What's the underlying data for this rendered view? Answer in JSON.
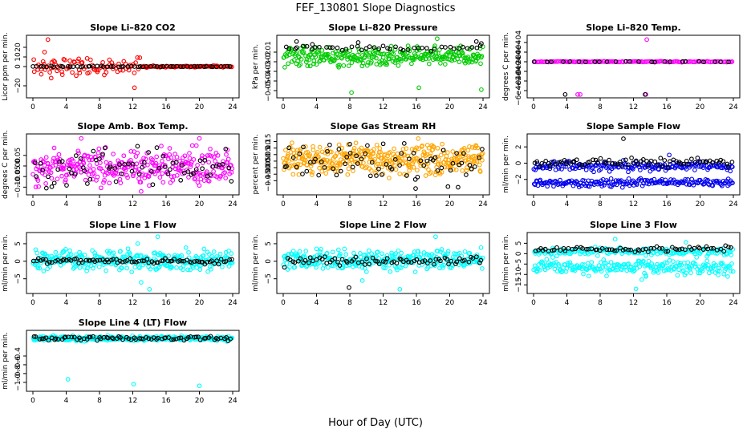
{
  "figure": {
    "title": "FEF_130801  Slope Diagnostics",
    "xlabel": "Hour of Day (UTC)"
  },
  "chart_data": [
    {
      "type": "scatter",
      "title": "Slope Li–820 CO2",
      "ylabel": "Licor ppm per min.",
      "xlim": [
        0,
        24
      ],
      "ylim": [
        -30,
        30
      ],
      "xticks": [
        "0",
        "4",
        "8",
        "12",
        "16",
        "20",
        "24"
      ],
      "yticks": [
        {
          "v": -20,
          "t": "−20"
        },
        {
          "v": 0,
          "t": "0"
        },
        {
          "v": 10,
          "t": "10"
        },
        {
          "v": 20,
          "t": "20"
        }
      ],
      "series": [
        {
          "name": "primary",
          "color": "#ff0000",
          "gen": {
            "kind": "band",
            "n": 150,
            "x0": 0,
            "x1": 24,
            "center": 0,
            "spread": 4,
            "segments": [
              {
                "x0": 0,
                "x1": 13,
                "spread": 7
              },
              {
                "x0": 13,
                "x1": 24,
                "spread": 0.7
              }
            ]
          },
          "points": [
            [
              1.8,
              28
            ],
            [
              1.4,
              15
            ],
            [
              2.2,
              -12
            ],
            [
              12.2,
              -22
            ],
            [
              2.5,
              6
            ],
            [
              1.0,
              -8
            ],
            [
              5.5,
              8
            ],
            [
              9.2,
              7
            ],
            [
              8.8,
              -6
            ]
          ]
        },
        {
          "name": "secondary",
          "color": "#000000",
          "gen": {
            "kind": "band",
            "n": 60,
            "x0": 0,
            "x1": 24,
            "center": 0,
            "spread": 0.4
          }
        }
      ]
    },
    {
      "type": "scatter",
      "title": "Slope Li–820 Pressure",
      "ylabel": "kPa per min.",
      "xlim": [
        0,
        24
      ],
      "ylim": [
        -0.055,
        0.005
      ],
      "xticks": [
        "0",
        "4",
        "8",
        "12",
        "16",
        "20",
        "24"
      ],
      "yticks": [
        {
          "v": -0.05,
          "t": "−0.05"
        },
        {
          "v": -0.04,
          "t": "−0.04"
        },
        {
          "v": -0.03,
          "t": "−0.03"
        },
        {
          "v": -0.02,
          "t": "−0.02"
        },
        {
          "v": -0.01,
          "t": "−0.01"
        }
      ],
      "series": [
        {
          "name": "primary",
          "color": "#00cc00",
          "gen": {
            "kind": "band",
            "n": 300,
            "x0": 0,
            "x1": 24,
            "center": -0.0145,
            "spread": 0.0085
          },
          "points": [
            [
              8.2,
              -0.052
            ],
            [
              16.3,
              -0.047
            ],
            [
              23.8,
              -0.049
            ],
            [
              18.5,
              0.004
            ]
          ]
        },
        {
          "name": "secondary",
          "color": "#000000",
          "gen": {
            "kind": "band",
            "n": 45,
            "x0": 0,
            "x1": 24,
            "center": -0.006,
            "spread": 0.002
          },
          "points": [
            [
              1.6,
              0.001
            ],
            [
              3.5,
              -0.002
            ],
            [
              9.0,
              0.0
            ],
            [
              23.2,
              0.001
            ],
            [
              23.8,
              -0.001
            ]
          ]
        }
      ]
    },
    {
      "type": "scatter",
      "title": "Slope Li–820 Temp.",
      "ylabel": "degrees C per min.",
      "xlim": [
        0,
        24
      ],
      "ylim": [
        -0.0007,
        0.0005
      ],
      "xticks": [
        "0",
        "4",
        "8",
        "12",
        "16",
        "20",
        "24"
      ],
      "yticks": [
        {
          "v": -0.0006,
          "t": "−6e−04"
        },
        {
          "v": -0.0004,
          "t": "−4e−04"
        },
        {
          "v": -0.0002,
          "t": "−2e−04"
        },
        {
          "v": 0.0,
          "t": "0e+00"
        },
        {
          "v": 0.0002,
          "t": "2e−04"
        },
        {
          "v": 0.0004,
          "t": "4e−04"
        }
      ],
      "series": [
        {
          "name": "primary",
          "color": "#ff00ff",
          "gen": {
            "kind": "band",
            "n": 130,
            "x0": 0,
            "x1": 24,
            "center": 0.0,
            "spread": 8e-06
          },
          "points": [
            [
              5.3,
              -0.00068
            ],
            [
              5.6,
              -0.00068
            ],
            [
              13.5,
              -0.00068
            ],
            [
              13.6,
              0.00046
            ]
          ]
        },
        {
          "name": "secondary",
          "color": "#000000",
          "gen": {
            "kind": "band",
            "n": 25,
            "x0": 0,
            "x1": 24,
            "center": 0.0,
            "spread": 6e-06
          },
          "points": [
            [
              3.8,
              -0.00068
            ],
            [
              13.4,
              -0.00068
            ]
          ]
        }
      ]
    },
    {
      "type": "scatter",
      "title": "Slope Amb. Box Temp.",
      "ylabel": "degrees C per min.",
      "xlim": [
        0,
        24
      ],
      "ylim": [
        -0.125,
        0.14
      ],
      "xticks": [
        "0",
        "4",
        "8",
        "12",
        "16",
        "20",
        "24"
      ],
      "yticks": [
        {
          "v": -0.1,
          "t": "−0.10"
        },
        {
          "v": -0.05,
          "t": "−0.05"
        },
        {
          "v": 0.0,
          "t": "0.00"
        },
        {
          "v": 0.05,
          "t": "0.05"
        }
      ],
      "series": [
        {
          "name": "primary",
          "color": "#ff00ff",
          "gen": {
            "kind": "band",
            "n": 320,
            "x0": 0,
            "x1": 24,
            "center": -0.005,
            "spread": 0.07
          },
          "points": [
            [
              5.8,
              0.13
            ],
            [
              20.0,
              0.13
            ],
            [
              13.0,
              -0.12
            ]
          ]
        },
        {
          "name": "secondary",
          "color": "#000000",
          "gen": {
            "kind": "band",
            "n": 70,
            "x0": 0,
            "x1": 24,
            "center": -0.01,
            "spread": 0.08
          }
        }
      ]
    },
    {
      "type": "scatter",
      "title": "Slope Gas Stream RH",
      "ylabel": "percent per min.",
      "xlim": [
        0,
        24
      ],
      "ylim": [
        -0.24,
        0.19
      ],
      "xticks": [
        "0",
        "4",
        "8",
        "12",
        "16",
        "20",
        "24"
      ],
      "yticks": [
        {
          "v": -0.15,
          "t": "−0.15"
        },
        {
          "v": -0.1,
          "t": "−0.10"
        },
        {
          "v": -0.05,
          "t": "−0.05"
        },
        {
          "v": 0.0,
          "t": "0.00"
        },
        {
          "v": 0.05,
          "t": "0.05"
        },
        {
          "v": 0.1,
          "t": "0.10"
        },
        {
          "v": 0.15,
          "t": "0.15"
        }
      ],
      "series": [
        {
          "name": "primary",
          "color": "#ffa500",
          "gen": {
            "kind": "band",
            "n": 380,
            "x0": 0,
            "x1": 24,
            "center": 0.01,
            "spread": 0.1
          }
        },
        {
          "name": "secondary",
          "color": "#000000",
          "gen": {
            "kind": "band",
            "n": 70,
            "x0": 0,
            "x1": 24,
            "center": -0.02,
            "spread": 0.12
          },
          "points": [
            [
              15.9,
              -0.21
            ],
            [
              21.0,
              -0.2
            ],
            [
              8.0,
              0.13
            ]
          ]
        }
      ]
    },
    {
      "type": "scatter",
      "title": "Slope Sample Flow",
      "ylabel": "ml/min per min.",
      "xlim": [
        0,
        24
      ],
      "ylim": [
        -3.6,
        3.3
      ],
      "xticks": [
        "0",
        "4",
        "8",
        "12",
        "16",
        "20",
        "24"
      ],
      "yticks": [
        {
          "v": -2,
          "t": "−2"
        },
        {
          "v": 0,
          "t": "0"
        },
        {
          "v": 2,
          "t": "2"
        }
      ],
      "series": [
        {
          "name": "primary-upper",
          "color": "#0000ee",
          "gen": {
            "kind": "band",
            "n": 190,
            "x0": 0,
            "x1": 24,
            "center": -0.4,
            "spread": 0.45
          },
          "points": [
            [
              16.3,
              1.0
            ],
            [
              14.0,
              -1.0
            ]
          ]
        },
        {
          "name": "primary-lower",
          "color": "#0000ee",
          "gen": {
            "kind": "band",
            "n": 190,
            "x0": 0,
            "x1": 24,
            "center": -2.4,
            "spread": 0.4
          }
        },
        {
          "name": "secondary",
          "color": "#000000",
          "gen": {
            "kind": "band",
            "n": 75,
            "x0": 0,
            "x1": 24,
            "center": 0.1,
            "spread": 0.45
          },
          "points": [
            [
              10.8,
              3.0
            ]
          ]
        }
      ]
    },
    {
      "type": "scatter",
      "title": "Slope Line 1 Flow",
      "ylabel": "ml/min per min.",
      "xlim": [
        0,
        24
      ],
      "ylim": [
        -8.5,
        7.5
      ],
      "xticks": [
        "0",
        "4",
        "8",
        "12",
        "16",
        "20",
        "24"
      ],
      "yticks": [
        {
          "v": -5,
          "t": "−5"
        },
        {
          "v": 0,
          "t": "0"
        },
        {
          "v": 5,
          "t": "5"
        }
      ],
      "series": [
        {
          "name": "primary",
          "color": "#00ffff",
          "gen": {
            "kind": "band",
            "n": 320,
            "x0": 0,
            "x1": 24,
            "center": 0.3,
            "spread": 2.4
          },
          "points": [
            [
              14.0,
              -8.0
            ],
            [
              15.0,
              7.0
            ],
            [
              13.0,
              -6.0
            ],
            [
              12.6,
              5.0
            ]
          ]
        },
        {
          "name": "secondary",
          "color": "#000000",
          "gen": {
            "kind": "band",
            "n": 85,
            "x0": 0,
            "x1": 24,
            "center": 0.0,
            "spread": 0.6
          }
        }
      ]
    },
    {
      "type": "scatter",
      "title": "Slope Line 2 Flow",
      "ylabel": "ml/min per min.",
      "xlim": [
        0,
        24
      ],
      "ylim": [
        -8.5,
        7.5
      ],
      "xticks": [
        "0",
        "4",
        "8",
        "12",
        "16",
        "20",
        "24"
      ],
      "yticks": [
        {
          "v": -5,
          "t": "−5"
        },
        {
          "v": 0,
          "t": "0"
        },
        {
          "v": 5,
          "t": "5"
        }
      ],
      "series": [
        {
          "name": "primary",
          "color": "#00ffff",
          "gen": {
            "kind": "band",
            "n": 320,
            "x0": 0,
            "x1": 24,
            "center": 0.3,
            "spread": 2.3
          },
          "points": [
            [
              18.3,
              7.0
            ],
            [
              14.0,
              -8.0
            ],
            [
              9.5,
              -5.5
            ],
            [
              10.0,
              -3.0
            ]
          ]
        },
        {
          "name": "secondary",
          "color": "#000000",
          "gen": {
            "kind": "band",
            "n": 75,
            "x0": 0,
            "x1": 24,
            "center": 0.0,
            "spread": 1.2
          },
          "points": [
            [
              7.9,
              -7.5
            ]
          ]
        }
      ]
    },
    {
      "type": "scatter",
      "title": "Slope Line 3 Flow",
      "ylabel": "ml/min per min.",
      "xlim": [
        0,
        24
      ],
      "ylim": [
        -18,
        9
      ],
      "xticks": [
        "0",
        "4",
        "8",
        "12",
        "16",
        "20",
        "24"
      ],
      "yticks": [
        {
          "v": -15,
          "t": "−15"
        },
        {
          "v": -10,
          "t": "−10"
        },
        {
          "v": -5,
          "t": "−5"
        },
        {
          "v": 0,
          "t": "0"
        },
        {
          "v": 5,
          "t": "5"
        }
      ],
      "series": [
        {
          "name": "primary-upper",
          "color": "#00ffff",
          "gen": {
            "kind": "band",
            "n": 170,
            "x0": 0,
            "x1": 24,
            "center": 1.0,
            "spread": 1.5
          },
          "points": [
            [
              9.8,
              7.0
            ],
            [
              18.3,
              5.5
            ]
          ]
        },
        {
          "name": "primary-lower",
          "color": "#00ffff",
          "gen": {
            "kind": "band",
            "n": 230,
            "x0": 0,
            "x1": 24,
            "center": -6.5,
            "spread": 3.0
          },
          "points": [
            [
              12.3,
              -17.0
            ],
            [
              13.0,
              -12.5
            ],
            [
              13.5,
              -11.0
            ]
          ]
        },
        {
          "name": "secondary",
          "color": "#000000",
          "gen": {
            "kind": "band",
            "n": 70,
            "x0": 0,
            "x1": 24,
            "center": 2.0,
            "spread": 1.2
          }
        }
      ]
    },
    {
      "type": "scatter",
      "title": "Slope Line 4 (LT) Flow",
      "ylabel": "ml/min per min.",
      "xlim": [
        0,
        24
      ],
      "ylim": [
        -1.15,
        0.13
      ],
      "xticks": [
        "0",
        "4",
        "8",
        "12",
        "16",
        "20",
        "24"
      ],
      "yticks": [
        {
          "v": -1.0,
          "t": "−1.0"
        },
        {
          "v": -0.8,
          "t": "−0.8"
        },
        {
          "v": -0.6,
          "t": "−0.6"
        },
        {
          "v": -0.4,
          "t": "−0.4"
        }
      ],
      "series": [
        {
          "name": "primary",
          "color": "#00ffff",
          "gen": {
            "kind": "band",
            "n": 300,
            "x0": 0,
            "x1": 24,
            "center": 0.0,
            "spread": 0.05
          },
          "points": [
            [
              4.2,
              -0.93
            ],
            [
              12.1,
              -1.04
            ],
            [
              20.0,
              -1.08
            ]
          ]
        },
        {
          "name": "secondary",
          "color": "#000000",
          "gen": {
            "kind": "band",
            "n": 80,
            "x0": 0,
            "x1": 24,
            "center": 0.0,
            "spread": 0.04
          }
        }
      ]
    }
  ]
}
